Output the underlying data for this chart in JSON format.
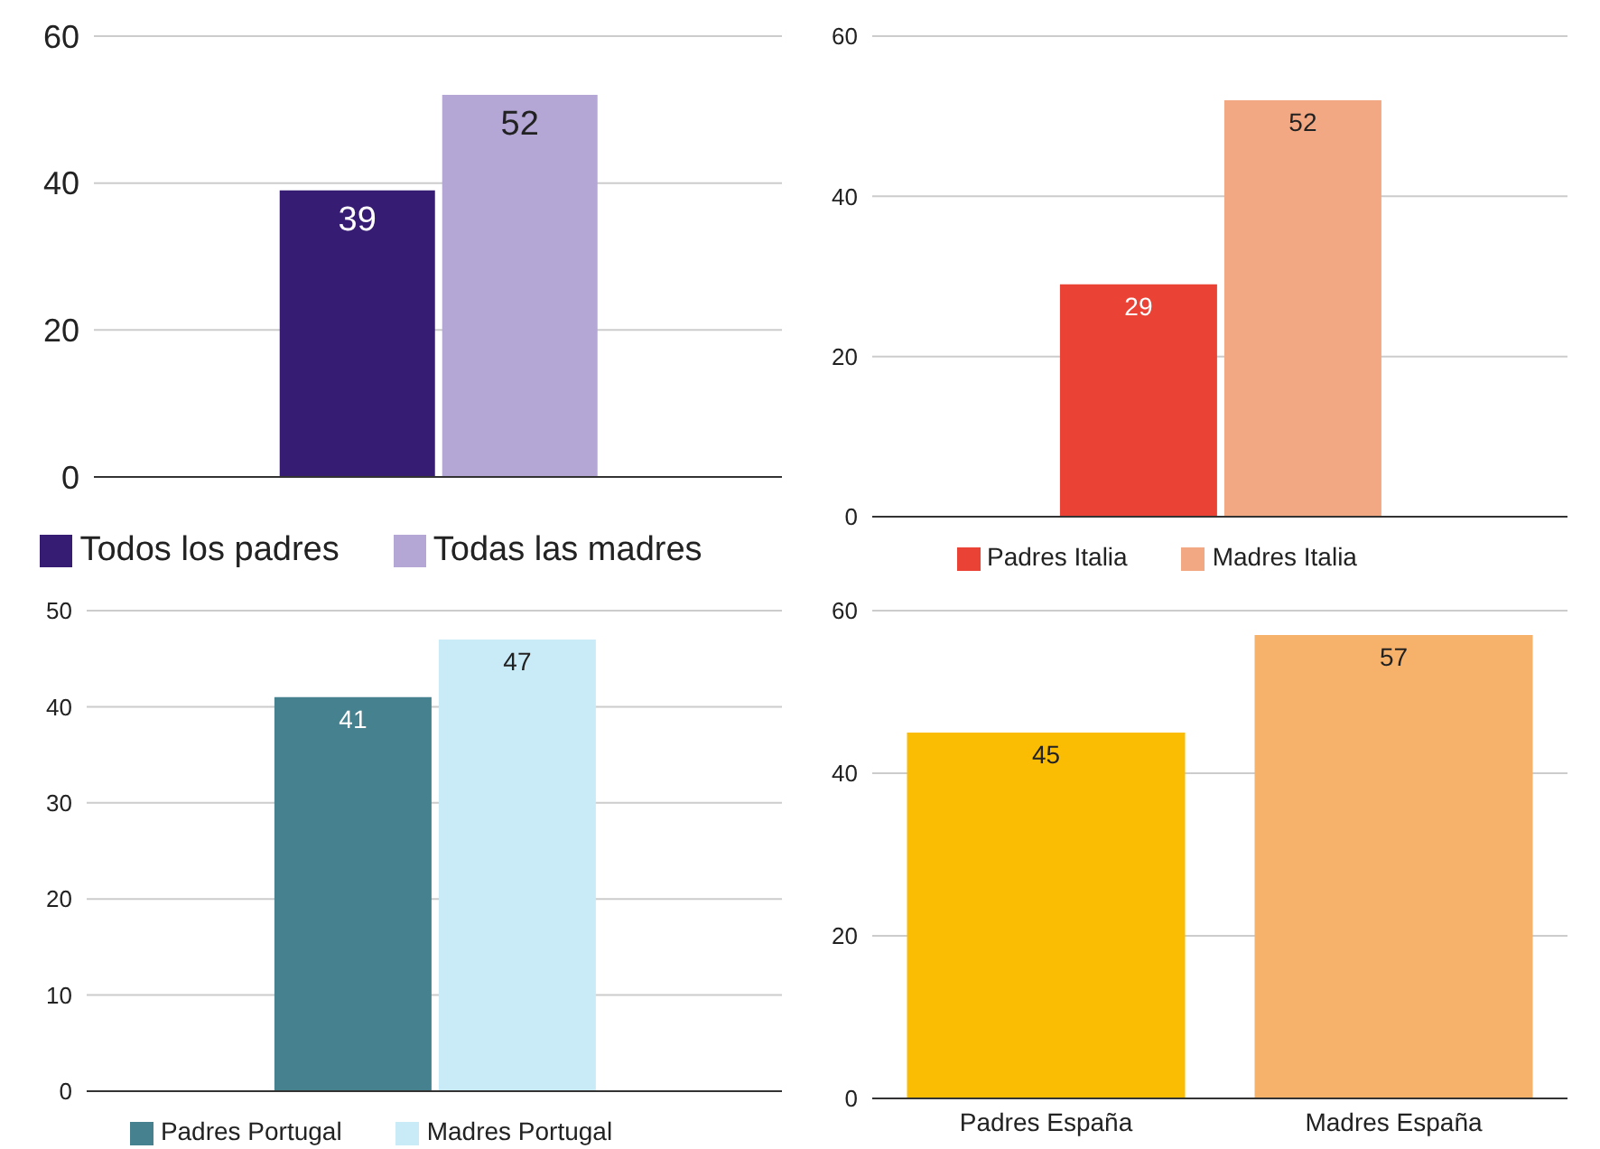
{
  "chart_data": [
    {
      "type": "bar",
      "categories": [
        null
      ],
      "series": [
        {
          "name": "Todos los padres",
          "color": "#371c74",
          "values": [
            39
          ]
        },
        {
          "name": "Todas las madres",
          "color": "#b4a7d6",
          "values": [
            52
          ]
        }
      ],
      "ylim": [
        0,
        60
      ],
      "yticks": [
        0,
        20,
        40,
        60
      ],
      "grid": "y",
      "legend": "bottom",
      "data_labels": true
    },
    {
      "type": "bar",
      "categories": [
        null
      ],
      "series": [
        {
          "name": "Padres Italia",
          "color": "#ea4335",
          "values": [
            29
          ]
        },
        {
          "name": "Madres Italia",
          "color": "#f2a883",
          "values": [
            52
          ]
        }
      ],
      "ylim": [
        0,
        60
      ],
      "yticks": [
        0,
        20,
        40,
        60
      ],
      "grid": "y",
      "legend": "bottom",
      "data_labels": true
    },
    {
      "type": "bar",
      "categories": [
        null
      ],
      "series": [
        {
          "name": "Padres Portugal",
          "color": "#45818e",
          "values": [
            41
          ]
        },
        {
          "name": "Madres Portugal",
          "color": "#c9ebf8",
          "values": [
            47
          ]
        }
      ],
      "ylim": [
        0,
        50
      ],
      "yticks": [
        0,
        10,
        20,
        30,
        40,
        50
      ],
      "grid": "y",
      "legend": "bottom",
      "data_labels": true
    },
    {
      "type": "bar",
      "categories": [
        "Padres España",
        "Madres España"
      ],
      "values": [
        45,
        57
      ],
      "colors": [
        "#fbbc04",
        "#f6b26b"
      ],
      "ylim": [
        0,
        60
      ],
      "yticks": [
        0,
        20,
        40,
        60
      ],
      "grid": "y",
      "data_labels": true
    }
  ]
}
